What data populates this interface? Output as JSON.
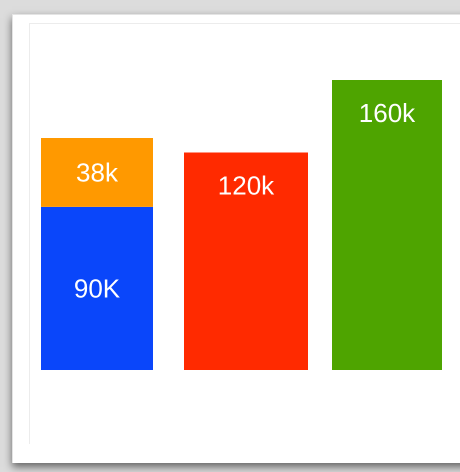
{
  "chart_data": {
    "type": "bar",
    "stacked": true,
    "categories": [
      "",
      "",
      ""
    ],
    "series": [
      {
        "values": [
          90,
          120,
          160
        ],
        "colors": [
          "#0a46fa",
          "#ff2a00",
          "#4ea400"
        ],
        "labels": [
          "90K",
          "120k",
          "160k"
        ]
      },
      {
        "values": [
          38,
          0,
          0
        ],
        "colors": [
          "#ff9900",
          "#ff9900",
          "#ff9900"
        ],
        "labels": [
          "38k",
          "",
          ""
        ]
      }
    ],
    "ylim": [
      0,
      170
    ],
    "grid": false,
    "legend": "none",
    "axes_visible": false
  }
}
